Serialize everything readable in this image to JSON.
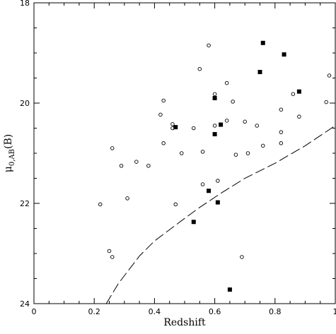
{
  "chart_data": {
    "type": "scatter",
    "title": "",
    "xlabel": "Redshift",
    "ylabel_main": "μ",
    "ylabel_sub": "0,AB",
    "ylabel_suffix": "(B)",
    "xlim": [
      0,
      1
    ],
    "ylim": [
      24,
      18
    ],
    "y_inverted": true,
    "x_ticks": [
      0,
      0.2,
      0.4,
      0.6,
      0.8,
      1
    ],
    "x_tick_labels": [
      "0",
      "0.2",
      "0.4",
      "0.6",
      "0.8",
      "1"
    ],
    "y_ticks": [
      18,
      20,
      22,
      24
    ],
    "y_tick_labels": [
      "18",
      "20",
      "22",
      "24"
    ],
    "grid": false,
    "series": [
      {
        "marker": "open-circle",
        "points": [
          [
            0.58,
            18.85
          ],
          [
            0.55,
            19.32
          ],
          [
            0.64,
            19.6
          ],
          [
            0.98,
            19.45
          ],
          [
            0.6,
            19.82
          ],
          [
            0.86,
            19.82
          ],
          [
            0.43,
            19.95
          ],
          [
            0.66,
            19.97
          ],
          [
            0.97,
            19.98
          ],
          [
            0.82,
            20.13
          ],
          [
            0.42,
            20.23
          ],
          [
            0.88,
            20.27
          ],
          [
            0.64,
            20.35
          ],
          [
            0.7,
            20.37
          ],
          [
            0.46,
            20.42
          ],
          [
            0.6,
            20.45
          ],
          [
            0.74,
            20.45
          ],
          [
            0.53,
            20.5
          ],
          [
            0.46,
            20.5
          ],
          [
            0.82,
            20.58
          ],
          [
            0.43,
            20.8
          ],
          [
            0.82,
            20.8
          ],
          [
            0.76,
            20.85
          ],
          [
            0.26,
            20.9
          ],
          [
            0.56,
            20.97
          ],
          [
            0.49,
            21.0
          ],
          [
            0.71,
            21.0
          ],
          [
            0.67,
            21.03
          ],
          [
            0.34,
            21.17
          ],
          [
            0.29,
            21.25
          ],
          [
            0.38,
            21.25
          ],
          [
            0.61,
            21.55
          ],
          [
            0.56,
            21.62
          ],
          [
            0.31,
            21.9
          ],
          [
            0.22,
            22.02
          ],
          [
            0.47,
            22.02
          ],
          [
            0.25,
            22.95
          ],
          [
            0.26,
            23.07
          ],
          [
            0.69,
            23.07
          ]
        ]
      },
      {
        "marker": "filled-square",
        "points": [
          [
            0.76,
            18.8
          ],
          [
            0.83,
            19.03
          ],
          [
            0.75,
            19.38
          ],
          [
            0.88,
            19.77
          ],
          [
            0.6,
            19.9
          ],
          [
            0.62,
            20.43
          ],
          [
            0.47,
            20.48
          ],
          [
            0.6,
            20.62
          ],
          [
            0.58,
            21.75
          ],
          [
            0.61,
            21.98
          ],
          [
            0.53,
            22.37
          ],
          [
            0.65,
            23.72
          ]
        ]
      },
      {
        "marker": "dashed-line",
        "points": [
          [
            0.24,
            24.0
          ],
          [
            0.28,
            23.6
          ],
          [
            0.35,
            23.05
          ],
          [
            0.4,
            22.75
          ],
          [
            0.5,
            22.3
          ],
          [
            0.55,
            22.08
          ],
          [
            0.62,
            21.8
          ],
          [
            0.7,
            21.5
          ],
          [
            0.8,
            21.2
          ],
          [
            0.9,
            20.85
          ],
          [
            1.0,
            20.45
          ]
        ]
      }
    ]
  }
}
